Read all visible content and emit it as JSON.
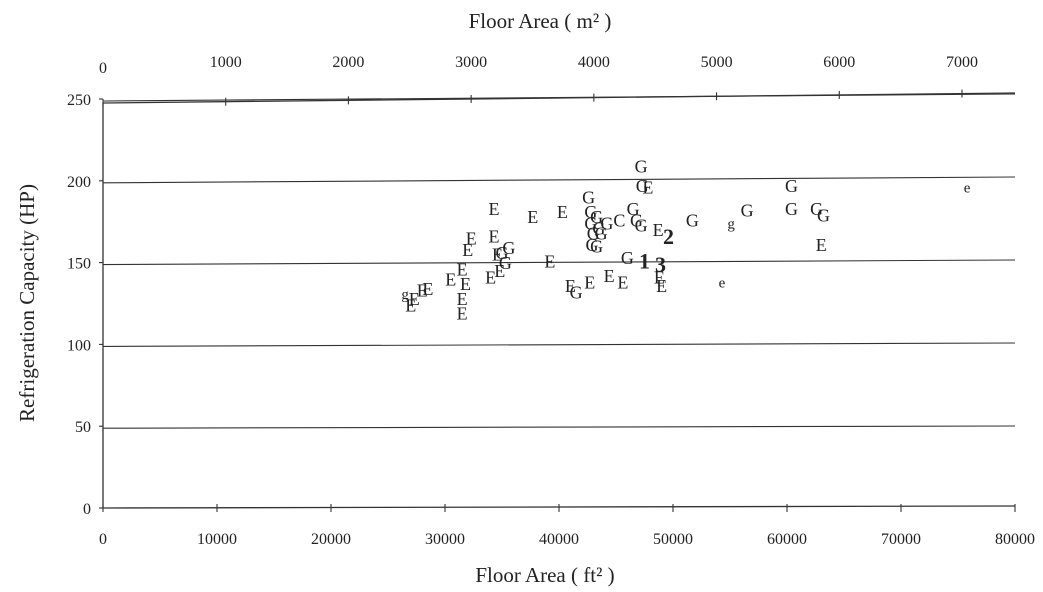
{
  "chart_data": {
    "type": "scatter",
    "title": "",
    "xlabel_bottom": "Floor Area ( ft² )",
    "xlabel_top": "Floor Area ( m² )",
    "ylabel": "Refrigeration Capacity (HP)",
    "xlim": [
      0,
      80000
    ],
    "ylim": [
      0,
      250
    ],
    "xlim_top": [
      0,
      7432
    ],
    "x_ticks": [
      "0",
      "10000",
      "20000",
      "30000",
      "40000",
      "50000",
      "60000",
      "70000",
      "80000"
    ],
    "x_top_ticks": [
      "0",
      "1000",
      "2000",
      "3000",
      "4000",
      "5000",
      "6000",
      "7000"
    ],
    "y_ticks": [
      "0",
      "50",
      "100",
      "150",
      "200",
      "250"
    ],
    "grid": "horizontal",
    "marker_legend_note": "points are plotted as letters",
    "points": [
      {
        "x": 26500,
        "y": 131,
        "label": "g"
      },
      {
        "x": 27000,
        "y": 124,
        "label": "E"
      },
      {
        "x": 27300,
        "y": 128,
        "label": "E"
      },
      {
        "x": 28000,
        "y": 133,
        "label": "E"
      },
      {
        "x": 28500,
        "y": 134,
        "label": "E"
      },
      {
        "x": 30500,
        "y": 140,
        "label": "E"
      },
      {
        "x": 31500,
        "y": 146,
        "label": "E"
      },
      {
        "x": 31500,
        "y": 128,
        "label": "E"
      },
      {
        "x": 31500,
        "y": 119,
        "label": "E"
      },
      {
        "x": 31800,
        "y": 137,
        "label": "E"
      },
      {
        "x": 32000,
        "y": 158,
        "label": "E"
      },
      {
        "x": 32300,
        "y": 165,
        "label": "E"
      },
      {
        "x": 34000,
        "y": 141,
        "label": "E"
      },
      {
        "x": 34300,
        "y": 183,
        "label": "E"
      },
      {
        "x": 34300,
        "y": 166,
        "label": "E"
      },
      {
        "x": 34600,
        "y": 155,
        "label": "E"
      },
      {
        "x": 34800,
        "y": 145,
        "label": "E"
      },
      {
        "x": 35000,
        "y": 156,
        "label": "G"
      },
      {
        "x": 35300,
        "y": 150,
        "label": "G"
      },
      {
        "x": 35600,
        "y": 159,
        "label": "G"
      },
      {
        "x": 37700,
        "y": 178,
        "label": "E"
      },
      {
        "x": 39200,
        "y": 151,
        "label": "E"
      },
      {
        "x": 40300,
        "y": 181,
        "label": "E"
      },
      {
        "x": 41000,
        "y": 136,
        "label": "E"
      },
      {
        "x": 41500,
        "y": 132,
        "label": "G"
      },
      {
        "x": 42700,
        "y": 138,
        "label": "E"
      },
      {
        "x": 42600,
        "y": 190,
        "label": "G"
      },
      {
        "x": 42800,
        "y": 181,
        "label": "G"
      },
      {
        "x": 42800,
        "y": 174,
        "label": "G"
      },
      {
        "x": 43000,
        "y": 168,
        "label": "G"
      },
      {
        "x": 42900,
        "y": 161,
        "label": "G"
      },
      {
        "x": 43300,
        "y": 178,
        "label": "G"
      },
      {
        "x": 43500,
        "y": 171,
        "label": "G"
      },
      {
        "x": 43700,
        "y": 168,
        "label": "G"
      },
      {
        "x": 43300,
        "y": 160,
        "label": "G"
      },
      {
        "x": 44200,
        "y": 174,
        "label": "G"
      },
      {
        "x": 44400,
        "y": 142,
        "label": "E"
      },
      {
        "x": 45300,
        "y": 176,
        "label": "C"
      },
      {
        "x": 45600,
        "y": 138,
        "label": "E"
      },
      {
        "x": 46000,
        "y": 153,
        "label": "G"
      },
      {
        "x": 46500,
        "y": 183,
        "label": "G"
      },
      {
        "x": 46800,
        "y": 176,
        "label": "G"
      },
      {
        "x": 47200,
        "y": 173,
        "label": "G"
      },
      {
        "x": 47200,
        "y": 209,
        "label": "G"
      },
      {
        "x": 47300,
        "y": 197,
        "label": "G"
      },
      {
        "x": 47800,
        "y": 196,
        "label": "E"
      },
      {
        "x": 47500,
        "y": 151,
        "label": "1"
      },
      {
        "x": 48700,
        "y": 170,
        "label": "E"
      },
      {
        "x": 48800,
        "y": 141,
        "label": "E"
      },
      {
        "x": 48900,
        "y": 149,
        "label": "3"
      },
      {
        "x": 49000,
        "y": 136,
        "label": "E"
      },
      {
        "x": 49600,
        "y": 166,
        "label": "2"
      },
      {
        "x": 51700,
        "y": 176,
        "label": "G"
      },
      {
        "x": 54300,
        "y": 138,
        "label": "e"
      },
      {
        "x": 55100,
        "y": 174,
        "label": "g"
      },
      {
        "x": 56500,
        "y": 182,
        "label": "G"
      },
      {
        "x": 60400,
        "y": 197,
        "label": "G"
      },
      {
        "x": 60400,
        "y": 183,
        "label": "G"
      },
      {
        "x": 62600,
        "y": 183,
        "label": "G"
      },
      {
        "x": 63200,
        "y": 179,
        "label": "G"
      },
      {
        "x": 63000,
        "y": 161,
        "label": "E"
      },
      {
        "x": 75800,
        "y": 196,
        "label": "e"
      }
    ]
  }
}
